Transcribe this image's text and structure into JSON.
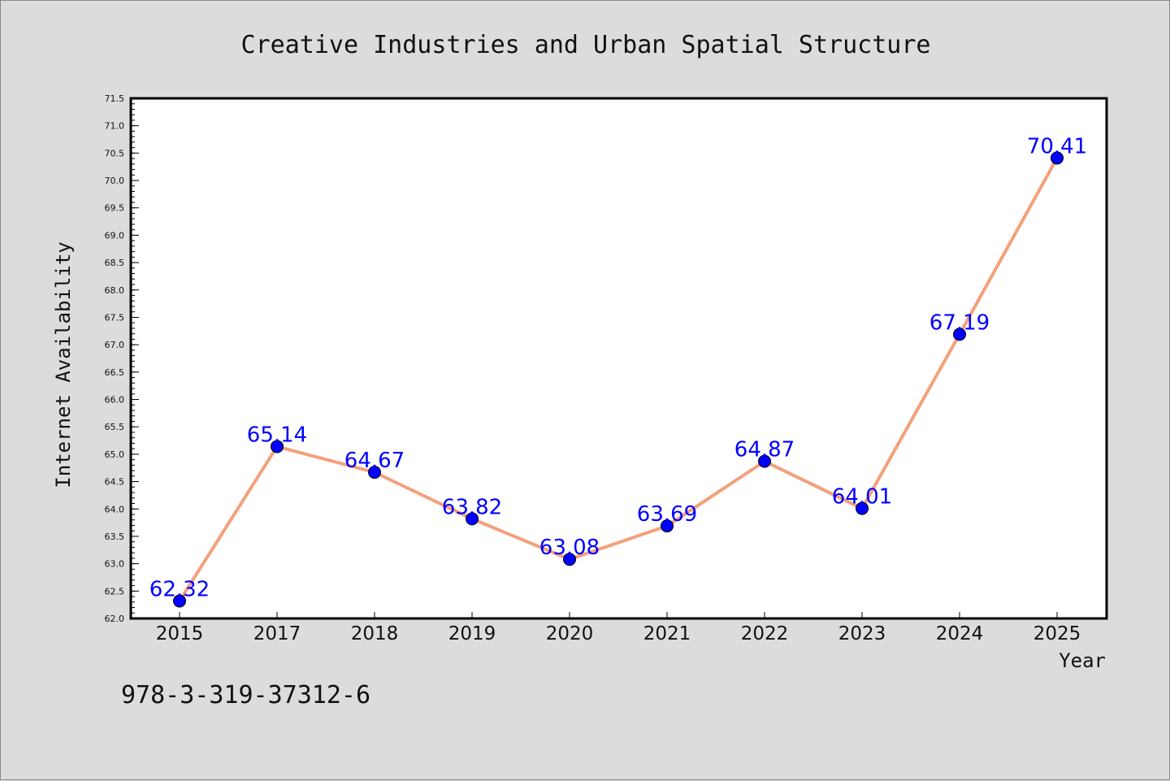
{
  "chart_data": {
    "type": "line",
    "title": "Creative Industries and Urban Spatial Structure",
    "xlabel": "Year",
    "ylabel": "Internet Availability",
    "categories": [
      "2015",
      "2017",
      "2018",
      "2019",
      "2020",
      "2021",
      "2022",
      "2023",
      "2024",
      "2025"
    ],
    "series": [
      {
        "values": [
          62.32,
          65.14,
          64.67,
          63.82,
          63.08,
          63.69,
          64.87,
          64.01,
          67.19,
          70.41
        ]
      }
    ],
    "data_labels": [
      "62.32",
      "65.14",
      "64.67",
      "63.82",
      "63.08",
      "63.69",
      "64.87",
      "64.01",
      "67.19",
      "70.41"
    ],
    "ylim": [
      62.0,
      71.5
    ],
    "yticks": [
      "62.0",
      "62.5",
      "63.0",
      "63.5",
      "64.0",
      "64.5",
      "65.0",
      "65.5",
      "66.0",
      "66.5",
      "67.0",
      "67.5",
      "68.0",
      "68.5",
      "69.0",
      "69.5",
      "70.0",
      "70.5",
      "71.0",
      "71.5"
    ],
    "grid": false,
    "line_color": "#f4a07c",
    "marker_color": "#0000ff",
    "label_color": "#0000ff"
  },
  "footer_text": "978-3-319-37312-6"
}
